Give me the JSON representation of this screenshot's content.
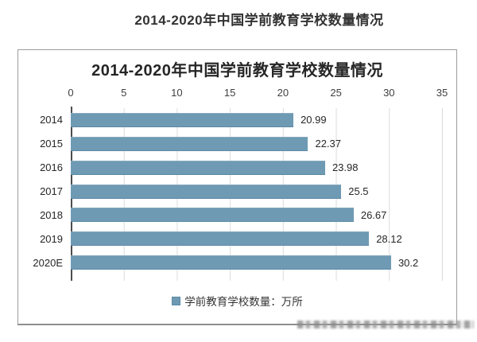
{
  "page": {
    "title": "2014-2020年中国学前教育学校数量情况"
  },
  "chart": {
    "title": "2014-2020年中国学前教育学校数量情况",
    "legend_label": "学前教育学校数量：万所",
    "colors": {
      "bar": "#6f9ab4",
      "gridline": "#dcdcdc",
      "axis": "#4d4d4d",
      "panel_border": "#9d9d9d",
      "text": "#262626"
    }
  },
  "chart_data": {
    "type": "bar",
    "orientation": "horizontal",
    "title": "2014-2020年中国学前教育学校数量情况",
    "categories": [
      "2014",
      "2015",
      "2016",
      "2017",
      "2018",
      "2019",
      "2020E"
    ],
    "values": [
      20.99,
      22.37,
      23.98,
      25.5,
      26.67,
      28.12,
      30.2
    ],
    "value_labels": [
      "20.99",
      "22.37",
      "23.98",
      "25.5",
      "26.67",
      "28.12",
      "30.2"
    ],
    "series_name": "学前教育学校数量：万所",
    "xlabel": "",
    "ylabel": "",
    "xlim": [
      0,
      35
    ],
    "xticks": [
      "0",
      "5",
      "10",
      "15",
      "20",
      "25",
      "30",
      "35"
    ],
    "grid": true,
    "legend_position": "bottom"
  }
}
